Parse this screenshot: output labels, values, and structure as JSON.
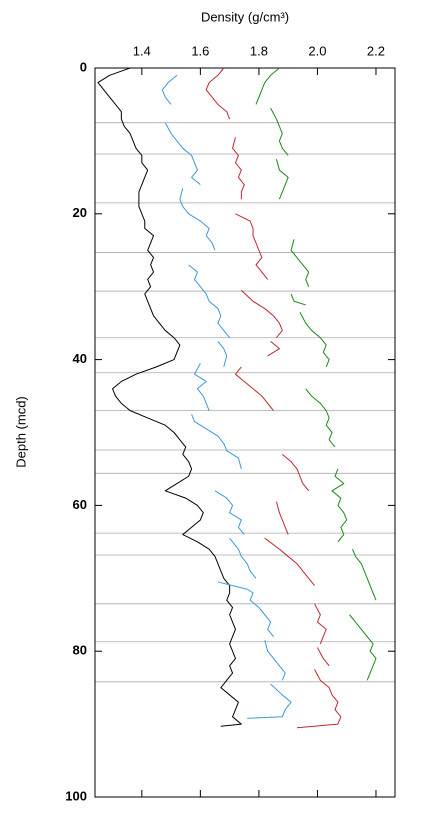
{
  "chart_data": {
    "type": "line",
    "title": "Density (g/cm³)",
    "ylabel": "Depth (mcd)",
    "xaxis_position": "top",
    "y_inverted": true,
    "xlim": [
      1.24,
      2.265
    ],
    "xticks": [
      1.4,
      1.6,
      1.8,
      {
        "value": 2,
        "label": "2.0"
      },
      2.2
    ],
    "ylim": [
      0,
      100
    ],
    "yticks": [
      0,
      20,
      40,
      60,
      80,
      100
    ],
    "hlines": [
      7.5,
      11.8,
      18.5,
      25.3,
      30.6,
      37,
      41.8,
      47,
      52.4,
      55.6,
      63.8,
      66.8,
      73.5,
      78.7,
      84.2
    ],
    "hline_color": "#aaaaaa",
    "series": [
      {
        "color": "#000000",
        "depth": [
          0,
          1,
          2,
          3,
          4,
          5,
          6,
          7,
          8,
          9,
          10,
          11,
          12,
          13,
          14,
          15,
          16,
          17,
          18,
          19,
          20,
          21,
          22,
          23,
          24,
          25,
          26,
          27,
          28,
          29,
          30,
          31,
          32,
          33,
          34,
          35,
          36,
          37,
          38,
          39,
          40,
          41,
          42,
          43,
          44,
          45,
          46,
          47,
          48,
          49,
          50,
          51,
          52,
          53,
          54,
          55,
          56,
          57,
          58,
          59,
          60,
          61,
          62,
          63,
          64,
          65,
          66,
          67,
          68,
          69,
          70,
          71,
          72,
          73,
          74,
          75,
          76,
          77,
          78,
          79,
          80,
          81,
          82,
          83,
          84,
          85,
          86,
          87,
          88,
          89,
          90,
          90.3
        ],
        "values": [
          1.36,
          1.29,
          1.25,
          1.27,
          1.29,
          1.31,
          1.33,
          1.33,
          1.34,
          1.36,
          1.37,
          1.38,
          1.4,
          1.4,
          1.42,
          1.41,
          1.4,
          1.39,
          1.39,
          1.39,
          1.4,
          1.41,
          1.41,
          1.44,
          1.43,
          1.42,
          1.44,
          1.43,
          1.44,
          1.42,
          1.43,
          1.41,
          1.42,
          1.43,
          1.44,
          1.46,
          1.48,
          1.51,
          1.53,
          1.52,
          1.51,
          1.45,
          1.38,
          1.33,
          1.3,
          1.31,
          1.33,
          1.36,
          1.42,
          1.48,
          1.51,
          1.53,
          1.55,
          1.54,
          1.56,
          1.57,
          1.56,
          1.52,
          1.48,
          1.55,
          1.59,
          1.61,
          1.6,
          1.57,
          1.54,
          1.59,
          1.63,
          1.65,
          1.66,
          1.67,
          1.68,
          1.7,
          1.7,
          1.69,
          1.71,
          1.7,
          1.71,
          1.72,
          1.71,
          1.7,
          1.71,
          1.72,
          1.7,
          1.71,
          1.69,
          1.67,
          1.7,
          1.73,
          1.72,
          1.71,
          1.74,
          1.67
        ]
      },
      {
        "color": "#3a9ad9",
        "depth": [
          1,
          2,
          3,
          4,
          5,
          null,
          7.5,
          9,
          10,
          11,
          12,
          13,
          14,
          15,
          16,
          null,
          16.5,
          18,
          19,
          20,
          21,
          22,
          23,
          24,
          25,
          null,
          27,
          28,
          29,
          30,
          31,
          32,
          33,
          34,
          35,
          36,
          37,
          null,
          37.5,
          38.5,
          39.5,
          41,
          null,
          40.5,
          42,
          43,
          44,
          45,
          46,
          47,
          null,
          47.5,
          48.5,
          49.5,
          50.5,
          51.5,
          52.5,
          53.5,
          55,
          null,
          58,
          59,
          60,
          61,
          62,
          63,
          64,
          null,
          64.5,
          66,
          67,
          68,
          69,
          70,
          null,
          70.5,
          71.5,
          72,
          73,
          74,
          75,
          76,
          77,
          78,
          null,
          78.5,
          80,
          81,
          82,
          83,
          84,
          null,
          84.5,
          86,
          87,
          88,
          89,
          89.2
        ],
        "values": [
          1.52,
          1.49,
          1.47,
          1.48,
          1.5,
          null,
          1.48,
          1.5,
          1.52,
          1.54,
          1.57,
          1.58,
          1.59,
          1.57,
          1.6,
          null,
          1.54,
          1.53,
          1.54,
          1.56,
          1.6,
          1.63,
          1.62,
          1.64,
          1.65,
          null,
          1.56,
          1.59,
          1.58,
          1.6,
          1.62,
          1.63,
          1.66,
          1.67,
          1.66,
          1.68,
          1.7,
          null,
          1.66,
          1.68,
          1.69,
          1.68,
          null,
          1.6,
          1.58,
          1.62,
          1.59,
          1.61,
          1.62,
          1.63,
          null,
          1.57,
          1.58,
          1.62,
          1.66,
          1.68,
          1.69,
          1.73,
          1.74,
          null,
          1.65,
          1.69,
          1.71,
          1.7,
          1.74,
          1.73,
          1.75,
          null,
          1.7,
          1.73,
          1.74,
          1.76,
          1.77,
          1.79,
          null,
          1.66,
          1.76,
          1.78,
          1.77,
          1.8,
          1.82,
          1.84,
          1.83,
          1.85,
          null,
          1.82,
          1.83,
          1.85,
          1.87,
          1.89,
          1.88,
          null,
          1.84,
          1.88,
          1.91,
          1.89,
          1.88,
          1.76
        ]
      },
      {
        "color": "#c0272d",
        "depth": [
          0,
          1,
          2,
          3,
          4,
          5,
          6,
          7,
          null,
          9.5,
          11,
          12,
          13,
          14,
          15,
          16,
          17,
          18,
          null,
          20,
          21,
          22,
          23,
          24,
          25,
          26,
          27,
          28,
          29,
          null,
          30.5,
          32,
          33,
          34,
          35,
          36,
          37,
          null,
          37.5,
          38.5,
          39.5,
          null,
          41,
          42,
          43,
          44,
          45,
          46,
          47,
          null,
          53,
          54,
          55,
          56,
          57,
          58,
          null,
          59.5,
          61,
          62,
          63,
          64,
          null,
          64.5,
          66,
          67,
          68,
          69,
          70,
          71,
          null,
          73.5,
          75,
          76,
          77,
          78,
          79,
          null,
          79.5,
          81,
          82,
          null,
          82.5,
          84,
          85,
          86,
          87,
          88,
          89,
          90,
          90.5
        ],
        "values": [
          1.68,
          1.66,
          1.63,
          1.62,
          1.64,
          1.66,
          1.69,
          1.7,
          null,
          1.72,
          1.71,
          1.73,
          1.72,
          1.74,
          1.73,
          1.75,
          1.74,
          1.74,
          null,
          1.72,
          1.77,
          1.78,
          1.78,
          1.79,
          1.8,
          1.81,
          1.79,
          1.81,
          1.83,
          null,
          1.74,
          1.78,
          1.82,
          1.85,
          1.87,
          1.88,
          1.86,
          null,
          1.84,
          1.87,
          1.83,
          null,
          1.74,
          1.72,
          1.75,
          1.78,
          1.81,
          1.83,
          1.85,
          null,
          1.88,
          1.91,
          1.93,
          1.94,
          1.95,
          1.97,
          null,
          1.86,
          1.87,
          1.88,
          1.89,
          1.9,
          null,
          1.82,
          1.87,
          1.9,
          1.93,
          1.95,
          1.97,
          1.99,
          null,
          1.99,
          2.01,
          2.0,
          2.03,
          2.02,
          2.01,
          null,
          2.0,
          2.02,
          2.04,
          null,
          1.99,
          2.01,
          2.04,
          2.05,
          2.07,
          2.06,
          2.08,
          2.07,
          1.93
        ]
      },
      {
        "color": "#1a8a1a",
        "depth": [
          0,
          1,
          2,
          3,
          4,
          5,
          null,
          5.5,
          7,
          8,
          9,
          10,
          11,
          12,
          null,
          12.5,
          14,
          15,
          16,
          17,
          18,
          null,
          23.5,
          25,
          26,
          27,
          28,
          29,
          30,
          null,
          31,
          32,
          32.5,
          null,
          33.5,
          35,
          36,
          37,
          38,
          39,
          40,
          41,
          null,
          44,
          45,
          46,
          47,
          48,
          49,
          50,
          51,
          52,
          null,
          55,
          56,
          57,
          58,
          59,
          60,
          61,
          62,
          63,
          64,
          65,
          null,
          66,
          67,
          68,
          69,
          70,
          71,
          72,
          73,
          null,
          75,
          76,
          77,
          78,
          79,
          80,
          81,
          82,
          83,
          84
        ],
        "values": [
          1.87,
          1.84,
          1.82,
          1.81,
          1.8,
          1.79,
          null,
          1.84,
          1.86,
          1.87,
          1.88,
          1.87,
          1.88,
          1.9,
          null,
          1.86,
          1.87,
          1.9,
          1.89,
          1.88,
          1.87,
          null,
          1.92,
          1.91,
          1.93,
          1.95,
          1.97,
          1.96,
          1.97,
          null,
          1.91,
          1.92,
          1.96,
          null,
          1.94,
          1.96,
          1.98,
          2.01,
          2.03,
          2.02,
          2.04,
          2.03,
          null,
          1.96,
          1.98,
          2.01,
          2.03,
          2.04,
          2.03,
          2.05,
          2.04,
          2.06,
          null,
          2.07,
          2.06,
          2.09,
          2.05,
          2.08,
          2.07,
          2.09,
          2.1,
          2.08,
          2.09,
          2.07,
          null,
          2.12,
          2.13,
          2.15,
          2.16,
          2.17,
          2.18,
          2.19,
          2.2,
          null,
          2.11,
          2.13,
          2.15,
          2.17,
          2.19,
          2.18,
          2.2,
          2.19,
          2.18,
          2.17
        ]
      }
    ]
  }
}
